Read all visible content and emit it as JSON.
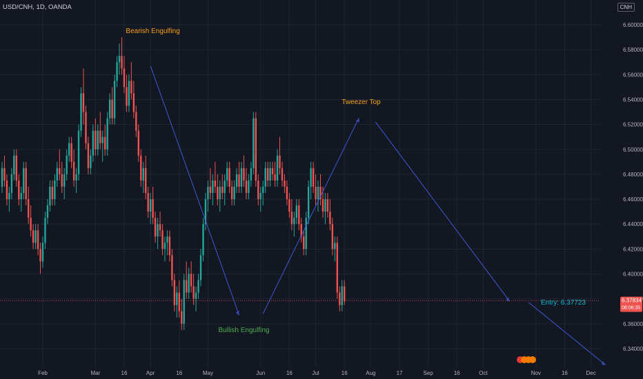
{
  "header": {
    "symbol_line": "USD/CNH, 1D, OANDA",
    "currency_button": "CNH"
  },
  "price_tag": {
    "price": "6.37834",
    "countdown": "08:06:35"
  },
  "colors": {
    "background": "#131722",
    "up": "#26a69a",
    "down": "#ef5350",
    "annotation_orange": "#f7a21b",
    "annotation_green": "#4caf50",
    "trend_line": "#3a5bd9",
    "entry_text": "#00bcd4"
  },
  "chart_data": {
    "type": "candlestick",
    "ylim": [
      6.325,
      6.61
    ],
    "y_ticks": [
      6.34,
      6.36,
      6.38,
      6.4,
      6.42,
      6.44,
      6.46,
      6.48,
      6.5,
      6.52,
      6.54,
      6.56,
      6.58,
      6.6
    ],
    "y_tick_labels": [
      "6.34000",
      "6.36000",
      "6.38000",
      "6.40000",
      "6.42000",
      "6.44000",
      "6.46000",
      "6.48000",
      "6.50000",
      "6.52000",
      "6.54000",
      "6.56000",
      "6.58000",
      "6.60000"
    ],
    "x_tick_labels": [
      "Feb",
      "Mar",
      "16",
      "Apr",
      "16",
      "May",
      "Jun",
      "16",
      "Jul",
      "16",
      "Aug",
      "17",
      "Sep",
      "16",
      "Oct",
      "Nov",
      "16",
      "Dec"
    ],
    "x_tick_bar_index": [
      17,
      39,
      51,
      62,
      74,
      86,
      108,
      120,
      131,
      143,
      154,
      166,
      178,
      190,
      201,
      223,
      235,
      246
    ],
    "grid": true,
    "current_price": 6.37834,
    "annotations": [
      {
        "text": "Bearish Engulfing",
        "bar": 63,
        "price": 6.595,
        "color": "orange"
      },
      {
        "text": "Tweezer Top",
        "bar": 150,
        "price": 6.538,
        "color": "orange"
      },
      {
        "text": "Bullish Engulfing",
        "bar": 101,
        "price": 6.355,
        "color": "green"
      },
      {
        "text": "Entry: 6.37723",
        "bar": 220,
        "price": 6.377,
        "color": "cyan"
      }
    ],
    "trend_lines": [
      {
        "from": [
          62,
          6.567
        ],
        "to": [
          99,
          6.367
        ]
      },
      {
        "from": [
          109,
          6.368
        ],
        "to": [
          149,
          6.525
        ]
      },
      {
        "from": [
          156,
          6.522
        ],
        "to": [
          212,
          6.378
        ]
      },
      {
        "from": [
          220,
          6.377
        ],
        "to": [
          252,
          6.327
        ]
      }
    ],
    "candles": [
      [
        6.47,
        6.49,
        6.465,
        6.485
      ],
      [
        6.485,
        6.495,
        6.47,
        6.475
      ],
      [
        6.475,
        6.48,
        6.455,
        6.46
      ],
      [
        6.46,
        6.47,
        6.45,
        6.465
      ],
      [
        6.465,
        6.485,
        6.46,
        6.48
      ],
      [
        6.48,
        6.5,
        6.475,
        6.495
      ],
      [
        6.495,
        6.5,
        6.47,
        6.475
      ],
      [
        6.475,
        6.48,
        6.455,
        6.46
      ],
      [
        6.46,
        6.47,
        6.45,
        6.465
      ],
      [
        6.465,
        6.49,
        6.46,
        6.485
      ],
      [
        6.485,
        6.49,
        6.455,
        6.46
      ],
      [
        6.46,
        6.47,
        6.44,
        6.445
      ],
      [
        6.445,
        6.455,
        6.43,
        6.435
      ],
      [
        6.435,
        6.44,
        6.42,
        6.425
      ],
      [
        6.425,
        6.44,
        6.42,
        6.435
      ],
      [
        6.435,
        6.44,
        6.415,
        6.42
      ],
      [
        6.42,
        6.425,
        6.4,
        6.41
      ],
      [
        6.41,
        6.43,
        6.405,
        6.425
      ],
      [
        6.425,
        6.45,
        6.42,
        6.445
      ],
      [
        6.445,
        6.46,
        6.44,
        6.455
      ],
      [
        6.455,
        6.475,
        6.45,
        6.47
      ],
      [
        6.47,
        6.475,
        6.455,
        6.46
      ],
      [
        6.46,
        6.48,
        6.455,
        6.475
      ],
      [
        6.475,
        6.49,
        6.47,
        6.485
      ],
      [
        6.485,
        6.5,
        6.475,
        6.48
      ],
      [
        6.48,
        6.49,
        6.465,
        6.47
      ],
      [
        6.47,
        6.485,
        6.46,
        6.48
      ],
      [
        6.48,
        6.5,
        6.475,
        6.495
      ],
      [
        6.495,
        6.51,
        6.49,
        6.505
      ],
      [
        6.505,
        6.51,
        6.485,
        6.49
      ],
      [
        6.49,
        6.5,
        6.47,
        6.475
      ],
      [
        6.475,
        6.485,
        6.465,
        6.48
      ],
      [
        6.48,
        6.52,
        6.475,
        6.515
      ],
      [
        6.515,
        6.55,
        6.51,
        6.545
      ],
      [
        6.545,
        6.565,
        6.52,
        6.53
      ],
      [
        6.53,
        6.535,
        6.5,
        6.505
      ],
      [
        6.505,
        6.51,
        6.48,
        6.485
      ],
      [
        6.485,
        6.5,
        6.48,
        6.495
      ],
      [
        6.495,
        6.52,
        6.49,
        6.515
      ],
      [
        6.515,
        6.525,
        6.495,
        6.5
      ],
      [
        6.5,
        6.52,
        6.495,
        6.515
      ],
      [
        6.515,
        6.53,
        6.5,
        6.505
      ],
      [
        6.505,
        6.515,
        6.49,
        6.51
      ],
      [
        6.51,
        6.52,
        6.495,
        6.5
      ],
      [
        6.5,
        6.53,
        6.495,
        6.525
      ],
      [
        6.525,
        6.545,
        6.52,
        6.54
      ],
      [
        6.54,
        6.55,
        6.52,
        6.525
      ],
      [
        6.525,
        6.56,
        6.52,
        6.555
      ],
      [
        6.555,
        6.575,
        6.55,
        6.57
      ],
      [
        6.57,
        6.585,
        6.56,
        6.575
      ],
      [
        6.575,
        6.59,
        6.56,
        6.565
      ],
      [
        6.565,
        6.575,
        6.545,
        6.55
      ],
      [
        6.55,
        6.56,
        6.53,
        6.535
      ],
      [
        6.535,
        6.56,
        6.53,
        6.555
      ],
      [
        6.555,
        6.57,
        6.54,
        6.545
      ],
      [
        6.545,
        6.555,
        6.525,
        6.53
      ],
      [
        6.53,
        6.535,
        6.51,
        6.515
      ],
      [
        6.515,
        6.52,
        6.49,
        6.495
      ],
      [
        6.495,
        6.5,
        6.47,
        6.475
      ],
      [
        6.475,
        6.49,
        6.465,
        6.485
      ],
      [
        6.485,
        6.495,
        6.46,
        6.465
      ],
      [
        6.465,
        6.47,
        6.445,
        6.45
      ],
      [
        6.45,
        6.465,
        6.44,
        6.46
      ],
      [
        6.46,
        6.47,
        6.44,
        6.445
      ],
      [
        6.445,
        6.45,
        6.425,
        6.43
      ],
      [
        6.43,
        6.445,
        6.42,
        6.44
      ],
      [
        6.44,
        6.45,
        6.43,
        6.435
      ],
      [
        6.435,
        6.44,
        6.415,
        6.42
      ],
      [
        6.42,
        6.43,
        6.41,
        6.425
      ],
      [
        6.425,
        6.435,
        6.415,
        6.43
      ],
      [
        6.43,
        6.435,
        6.41,
        6.415
      ],
      [
        6.415,
        6.42,
        6.39,
        6.395
      ],
      [
        6.395,
        6.4,
        6.37,
        6.375
      ],
      [
        6.375,
        6.39,
        6.365,
        6.385
      ],
      [
        6.385,
        6.395,
        6.365,
        6.37
      ],
      [
        6.37,
        6.38,
        6.355,
        6.36
      ],
      [
        6.36,
        6.4,
        6.355,
        6.395
      ],
      [
        6.395,
        6.41,
        6.38,
        6.385
      ],
      [
        6.385,
        6.405,
        6.38,
        6.4
      ],
      [
        6.4,
        6.41,
        6.385,
        6.39
      ],
      [
        6.39,
        6.4,
        6.375,
        6.38
      ],
      [
        6.38,
        6.39,
        6.37,
        6.385
      ],
      [
        6.385,
        6.4,
        6.38,
        6.395
      ],
      [
        6.395,
        6.42,
        6.39,
        6.415
      ],
      [
        6.415,
        6.445,
        6.41,
        6.44
      ],
      [
        6.44,
        6.465,
        6.435,
        6.46
      ],
      [
        6.46,
        6.475,
        6.45,
        6.47
      ],
      [
        6.47,
        6.485,
        6.46,
        6.465
      ],
      [
        6.465,
        6.48,
        6.455,
        6.475
      ],
      [
        6.475,
        6.49,
        6.465,
        6.47
      ],
      [
        6.47,
        6.48,
        6.455,
        6.46
      ],
      [
        6.46,
        6.475,
        6.45,
        6.47
      ],
      [
        6.47,
        6.48,
        6.46,
        6.465
      ],
      [
        6.465,
        6.48,
        6.455,
        6.475
      ],
      [
        6.475,
        6.49,
        6.47,
        6.485
      ],
      [
        6.485,
        6.49,
        6.465,
        6.47
      ],
      [
        6.47,
        6.475,
        6.455,
        6.46
      ],
      [
        6.46,
        6.475,
        6.455,
        6.47
      ],
      [
        6.47,
        6.485,
        6.465,
        6.48
      ],
      [
        6.48,
        6.49,
        6.465,
        6.47
      ],
      [
        6.47,
        6.49,
        6.465,
        6.485
      ],
      [
        6.485,
        6.495,
        6.47,
        6.475
      ],
      [
        6.475,
        6.485,
        6.46,
        6.465
      ],
      [
        6.465,
        6.48,
        6.46,
        6.475
      ],
      [
        6.475,
        6.49,
        6.47,
        6.485
      ],
      [
        6.485,
        6.53,
        6.48,
        6.525
      ],
      [
        6.525,
        6.53,
        6.47,
        6.475
      ],
      [
        6.475,
        6.48,
        6.455,
        6.46
      ],
      [
        6.46,
        6.47,
        6.45,
        6.465
      ],
      [
        6.465,
        6.475,
        6.455,
        6.47
      ],
      [
        6.47,
        6.49,
        6.465,
        6.485
      ],
      [
        6.485,
        6.49,
        6.47,
        6.475
      ],
      [
        6.475,
        6.49,
        6.47,
        6.485
      ],
      [
        6.485,
        6.49,
        6.475,
        6.48
      ],
      [
        6.48,
        6.49,
        6.47,
        6.475
      ],
      [
        6.475,
        6.5,
        6.47,
        6.495
      ],
      [
        6.495,
        6.51,
        6.48,
        6.485
      ],
      [
        6.485,
        6.49,
        6.47,
        6.475
      ],
      [
        6.475,
        6.48,
        6.465,
        6.47
      ],
      [
        6.47,
        6.475,
        6.455,
        6.46
      ],
      [
        6.46,
        6.465,
        6.445,
        6.45
      ],
      [
        6.45,
        6.46,
        6.435,
        6.44
      ],
      [
        6.44,
        6.45,
        6.43,
        6.445
      ],
      [
        6.445,
        6.46,
        6.44,
        6.455
      ],
      [
        6.455,
        6.46,
        6.435,
        6.44
      ],
      [
        6.44,
        6.445,
        6.425,
        6.43
      ],
      [
        6.43,
        6.435,
        6.415,
        6.42
      ],
      [
        6.42,
        6.45,
        6.415,
        6.445
      ],
      [
        6.445,
        6.475,
        6.44,
        6.47
      ],
      [
        6.47,
        6.49,
        6.46,
        6.485
      ],
      [
        6.485,
        6.49,
        6.465,
        6.47
      ],
      [
        6.47,
        6.48,
        6.455,
        6.46
      ],
      [
        6.46,
        6.475,
        6.45,
        6.47
      ],
      [
        6.47,
        6.48,
        6.455,
        6.46
      ],
      [
        6.46,
        6.47,
        6.445,
        6.45
      ],
      [
        6.45,
        6.465,
        6.44,
        6.46
      ],
      [
        6.46,
        6.465,
        6.445,
        6.45
      ],
      [
        6.45,
        6.46,
        6.435,
        6.44
      ],
      [
        6.44,
        6.445,
        6.415,
        6.42
      ],
      [
        6.42,
        6.43,
        6.41,
        6.425
      ],
      [
        6.425,
        6.43,
        6.38,
        6.385
      ],
      [
        6.385,
        6.39,
        6.37,
        6.375
      ],
      [
        6.375,
        6.395,
        6.37,
        6.39
      ],
      [
        6.39,
        6.395,
        6.375,
        6.378
      ]
    ]
  }
}
